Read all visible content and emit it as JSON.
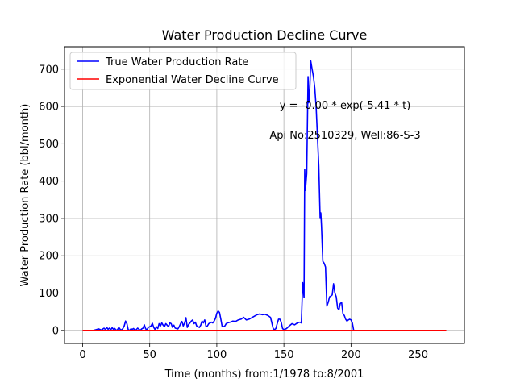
{
  "chart_data": {
    "type": "line",
    "title": "Water Production Decline Curve",
    "xlabel": "Time (months) from:1/1978 to:8/2001",
    "ylabel": "Water Production Rate (bbl/month)",
    "xlim": [
      -13.5,
      284.5
    ],
    "ylim": [
      -35,
      760
    ],
    "xticks": [
      0,
      50,
      100,
      150,
      200,
      250
    ],
    "yticks": [
      0,
      100,
      200,
      300,
      400,
      500,
      600,
      700
    ],
    "grid": true,
    "legend_position": "top-left",
    "annotations": [
      {
        "text": "y = -0.00 * exp(-5.41 * t)",
        "x": 195,
        "y": 586
      },
      {
        "text": "Api No:2510329, Well:86-S-3",
        "x": 195,
        "y": 509
      }
    ],
    "series": [
      {
        "name": "True Water Production Rate",
        "color": "#0000ff",
        "points": [
          [
            0,
            0
          ],
          [
            4,
            0
          ],
          [
            8,
            0
          ],
          [
            10,
            2
          ],
          [
            12,
            4
          ],
          [
            14,
            1
          ],
          [
            16,
            6
          ],
          [
            17,
            2
          ],
          [
            18,
            8
          ],
          [
            19,
            3
          ],
          [
            20,
            6
          ],
          [
            21,
            2
          ],
          [
            22,
            7
          ],
          [
            23,
            3
          ],
          [
            24,
            5
          ],
          [
            25,
            0
          ],
          [
            26,
            2
          ],
          [
            27,
            8
          ],
          [
            28,
            3
          ],
          [
            29,
            1
          ],
          [
            30,
            5
          ],
          [
            31,
            12
          ],
          [
            32,
            25
          ],
          [
            33,
            18
          ],
          [
            34,
            2
          ],
          [
            35,
            0
          ],
          [
            36,
            4
          ],
          [
            37,
            3
          ],
          [
            38,
            5
          ],
          [
            39,
            0
          ],
          [
            40,
            2
          ],
          [
            41,
            6
          ],
          [
            42,
            3
          ],
          [
            43,
            0
          ],
          [
            44,
            4
          ],
          [
            45,
            6
          ],
          [
            46,
            15
          ],
          [
            47,
            4
          ],
          [
            48,
            2
          ],
          [
            49,
            8
          ],
          [
            50,
            10
          ],
          [
            51,
            12
          ],
          [
            52,
            19
          ],
          [
            53,
            8
          ],
          [
            54,
            2
          ],
          [
            55,
            10
          ],
          [
            56,
            5
          ],
          [
            57,
            18
          ],
          [
            58,
            12
          ],
          [
            59,
            20
          ],
          [
            60,
            14
          ],
          [
            61,
            10
          ],
          [
            62,
            18
          ],
          [
            63,
            14
          ],
          [
            64,
            10
          ],
          [
            65,
            20
          ],
          [
            66,
            18
          ],
          [
            67,
            8
          ],
          [
            68,
            14
          ],
          [
            69,
            6
          ],
          [
            70,
            5
          ],
          [
            71,
            4
          ],
          [
            72,
            10
          ],
          [
            73,
            18
          ],
          [
            74,
            24
          ],
          [
            75,
            12
          ],
          [
            76,
            20
          ],
          [
            77,
            34
          ],
          [
            78,
            8
          ],
          [
            79,
            16
          ],
          [
            80,
            20
          ],
          [
            81,
            25
          ],
          [
            82,
            28
          ],
          [
            83,
            18
          ],
          [
            84,
            22
          ],
          [
            85,
            12
          ],
          [
            86,
            10
          ],
          [
            87,
            8
          ],
          [
            88,
            14
          ],
          [
            89,
            25
          ],
          [
            90,
            20
          ],
          [
            91,
            28
          ],
          [
            92,
            10
          ],
          [
            93,
            12
          ],
          [
            94,
            18
          ],
          [
            95,
            20
          ],
          [
            96,
            22
          ],
          [
            97,
            20
          ],
          [
            98,
            25
          ],
          [
            99,
            32
          ],
          [
            100,
            46
          ],
          [
            101,
            52
          ],
          [
            102,
            48
          ],
          [
            103,
            30
          ],
          [
            104,
            10
          ],
          [
            105,
            10
          ],
          [
            106,
            12
          ],
          [
            107,
            18
          ],
          [
            108,
            20
          ],
          [
            110,
            22
          ],
          [
            112,
            25
          ],
          [
            114,
            24
          ],
          [
            116,
            28
          ],
          [
            118,
            30
          ],
          [
            120,
            35
          ],
          [
            122,
            28
          ],
          [
            124,
            30
          ],
          [
            126,
            34
          ],
          [
            128,
            38
          ],
          [
            130,
            42
          ],
          [
            132,
            44
          ],
          [
            134,
            42
          ],
          [
            136,
            43
          ],
          [
            138,
            40
          ],
          [
            140,
            35
          ],
          [
            142,
            5
          ],
          [
            143,
            2
          ],
          [
            144,
            5
          ],
          [
            145,
            18
          ],
          [
            146,
            30
          ],
          [
            147,
            30
          ],
          [
            148,
            22
          ],
          [
            149,
            5
          ],
          [
            150,
            2
          ],
          [
            152,
            5
          ],
          [
            154,
            12
          ],
          [
            156,
            18
          ],
          [
            158,
            15
          ],
          [
            160,
            20
          ],
          [
            162,
            22
          ],
          [
            163,
            20
          ],
          [
            164,
            128
          ],
          [
            165,
            88
          ],
          [
            165.5,
            432
          ],
          [
            166,
            375
          ],
          [
            167,
            420
          ],
          [
            168,
            680
          ],
          [
            168.5,
            610
          ],
          [
            169,
            620
          ],
          [
            170,
            722
          ],
          [
            171,
            700
          ],
          [
            172,
            680
          ],
          [
            173,
            650
          ],
          [
            174,
            600
          ],
          [
            175,
            520
          ],
          [
            176,
            440
          ],
          [
            177,
            300
          ],
          [
            177.5,
            315
          ],
          [
            178,
            280
          ],
          [
            179,
            185
          ],
          [
            180,
            180
          ],
          [
            181,
            170
          ],
          [
            182,
            65
          ],
          [
            183,
            75
          ],
          [
            184,
            90
          ],
          [
            185,
            92
          ],
          [
            186,
            95
          ],
          [
            187,
            125
          ],
          [
            188,
            100
          ],
          [
            189,
            90
          ],
          [
            190,
            60
          ],
          [
            191,
            55
          ],
          [
            192,
            72
          ],
          [
            193,
            75
          ],
          [
            194,
            45
          ],
          [
            195,
            40
          ],
          [
            196,
            30
          ],
          [
            197,
            25
          ],
          [
            198,
            28
          ],
          [
            199,
            30
          ],
          [
            200,
            28
          ],
          [
            201,
            20
          ],
          [
            202,
            0
          ],
          [
            210,
            0
          ],
          [
            230,
            0
          ],
          [
            250,
            0
          ],
          [
            271,
            0
          ]
        ]
      },
      {
        "name": "Exponential Water Decline Curve",
        "color": "#ff0000",
        "points": [
          [
            0,
            0
          ],
          [
            271,
            0
          ]
        ]
      }
    ]
  }
}
